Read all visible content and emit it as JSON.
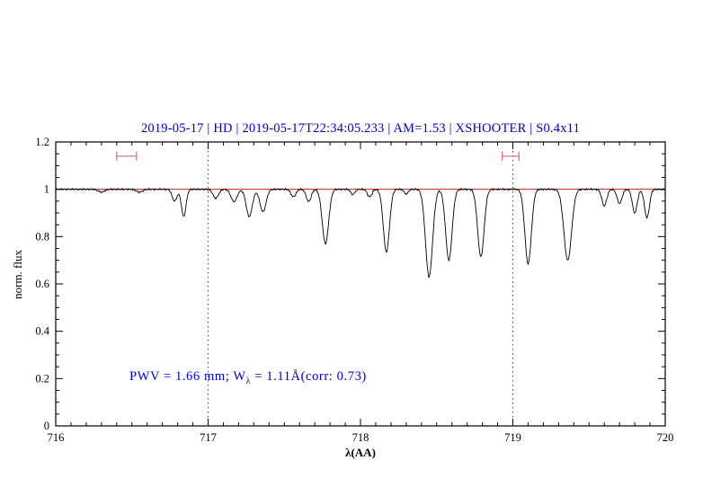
{
  "chart_data": {
    "type": "line",
    "title": "2019-05-17 | HD | 2019-05-17T22:34:05.233 | AM=1.53 | XSHOOTER | S0.4x11",
    "title_color": "#0000cd",
    "xlabel": "λ(AA)",
    "ylabel": "norm. flux",
    "xlim": [
      716,
      720
    ],
    "ylim": [
      0,
      1.2
    ],
    "grid": false,
    "x_tick_values": [
      716,
      717,
      718,
      719,
      720
    ],
    "x_tick_labels": [
      "716",
      "717",
      "718",
      "719",
      "720"
    ],
    "y_tick_values": [
      0,
      0.2,
      0.4,
      0.6,
      0.8,
      1.0,
      1.2
    ],
    "y_tick_labels": [
      "0",
      "0.2",
      "0.4",
      "0.6",
      "0.8",
      "1",
      "1.2"
    ],
    "x_minor_step": 0.1,
    "y_minor_step": 0.05,
    "dotted_guides_x": [
      717,
      719
    ],
    "continuum": {
      "y": 1.0,
      "color": "#cc2222"
    },
    "marker_color": "#dd6a6a",
    "region_markers": [
      {
        "x_start": 716.4,
        "x_end": 716.53,
        "y": 1.14
      },
      {
        "x_start": 718.93,
        "x_end": 719.04,
        "y": 1.14
      }
    ],
    "annotation": {
      "prefix": "PWV = 1.66 mm; W",
      "subscript": "λ",
      "suffix": " = 1.11Å(corr: 0.73)",
      "full_text": "PWV = 1.66 mm; Wλ = 1.11Å(corr: 0.73)",
      "color": "#0000cd",
      "x": 716.5,
      "y": 0.2
    },
    "noise_amplitude": 0.003,
    "series": [
      {
        "name": "telluric absorption spectrum",
        "color": "#000000",
        "continuum_level": 1.0,
        "absorption_lines": [
          {
            "center": 716.3,
            "depth": 0.012,
            "sigma": 0.02
          },
          {
            "center": 716.55,
            "depth": 0.012,
            "sigma": 0.02
          },
          {
            "center": 716.78,
            "depth": 0.05,
            "sigma": 0.016
          },
          {
            "center": 716.84,
            "depth": 0.115,
            "sigma": 0.015
          },
          {
            "center": 717.05,
            "depth": 0.038,
            "sigma": 0.018
          },
          {
            "center": 717.17,
            "depth": 0.052,
            "sigma": 0.02
          },
          {
            "center": 717.27,
            "depth": 0.115,
            "sigma": 0.02
          },
          {
            "center": 717.36,
            "depth": 0.095,
            "sigma": 0.02
          },
          {
            "center": 717.56,
            "depth": 0.032,
            "sigma": 0.016
          },
          {
            "center": 717.66,
            "depth": 0.052,
            "sigma": 0.016
          },
          {
            "center": 717.77,
            "depth": 0.23,
            "sigma": 0.021
          },
          {
            "center": 717.95,
            "depth": 0.022,
            "sigma": 0.014
          },
          {
            "center": 718.06,
            "depth": 0.032,
            "sigma": 0.015
          },
          {
            "center": 718.17,
            "depth": 0.265,
            "sigma": 0.02
          },
          {
            "center": 718.3,
            "depth": 0.02,
            "sigma": 0.013
          },
          {
            "center": 718.45,
            "depth": 0.37,
            "sigma": 0.023
          },
          {
            "center": 718.58,
            "depth": 0.3,
            "sigma": 0.021
          },
          {
            "center": 718.79,
            "depth": 0.285,
            "sigma": 0.021
          },
          {
            "center": 719.1,
            "depth": 0.315,
            "sigma": 0.021
          },
          {
            "center": 719.36,
            "depth": 0.3,
            "sigma": 0.025
          },
          {
            "center": 719.6,
            "depth": 0.07,
            "sigma": 0.016
          },
          {
            "center": 719.7,
            "depth": 0.06,
            "sigma": 0.016
          },
          {
            "center": 719.8,
            "depth": 0.1,
            "sigma": 0.016
          },
          {
            "center": 719.88,
            "depth": 0.12,
            "sigma": 0.016
          }
        ]
      }
    ]
  }
}
